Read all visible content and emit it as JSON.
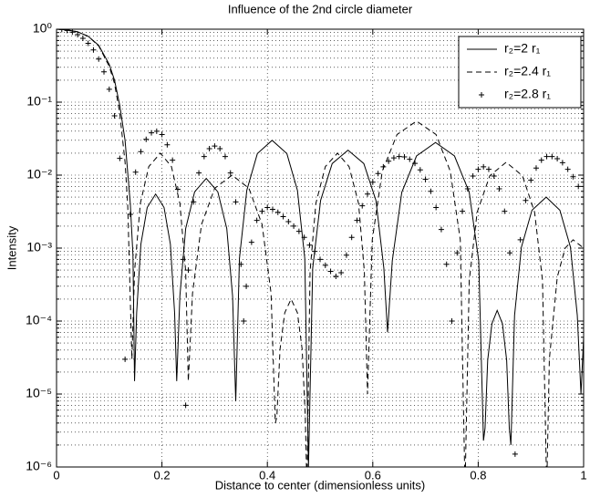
{
  "chart_data": {
    "type": "line",
    "title": "Influence of the 2nd circle diameter",
    "xlabel": "Distance to center (dimensionless units)",
    "ylabel": "Intensity",
    "xlim": [
      0,
      1
    ],
    "xticks": [
      0,
      0.2,
      0.4,
      0.6,
      0.8,
      1
    ],
    "ylim": [
      1e-06,
      1
    ],
    "yscale": "log",
    "yticks": [
      {
        "value": 1e-06,
        "label": "10⁻⁶"
      },
      {
        "value": 1e-05,
        "label": "10⁻⁵"
      },
      {
        "value": 0.0001,
        "label": "10⁻⁴"
      },
      {
        "value": 0.001,
        "label": "10⁻³"
      },
      {
        "value": 0.01,
        "label": "10⁻²"
      },
      {
        "value": 0.1,
        "label": "10⁻¹"
      },
      {
        "value": 1,
        "label": "10⁰"
      }
    ],
    "grid": true,
    "minor_grid": true,
    "legend": "upper right",
    "series": [
      {
        "name": "r₂=2 r₁",
        "color": "#000000",
        "line_style": "solid",
        "x": [
          0,
          0.02,
          0.04,
          0.06,
          0.08,
          0.1,
          0.11,
          0.12,
          0.13,
          0.14,
          0.145,
          0.148,
          0.152,
          0.16,
          0.172,
          0.188,
          0.204,
          0.216,
          0.224,
          0.228,
          0.234,
          0.245,
          0.262,
          0.284,
          0.306,
          0.323,
          0.334,
          0.34,
          0.347,
          0.361,
          0.381,
          0.409,
          0.437,
          0.457,
          0.471,
          0.478,
          0.486,
          0.501,
          0.523,
          0.553,
          0.583,
          0.606,
          0.621,
          0.628,
          0.637,
          0.655,
          0.683,
          0.719,
          0.755,
          0.783,
          0.801,
          0.81,
          0.813,
          0.818,
          0.826,
          0.836,
          0.846,
          0.854,
          0.859,
          0.862,
          0.869,
          0.882,
          0.902,
          0.929,
          0.955,
          0.975,
          0.988,
          0.995,
          1
        ],
        "values": [
          1,
          0.98,
          0.92,
          0.8,
          0.6,
          0.33,
          0.2,
          0.09,
          0.03,
          0.004,
          0.0008,
          1.5e-05,
          0.00013,
          0.00113,
          0.0036,
          0.0055,
          0.0036,
          0.00113,
          0.00013,
          1.5e-05,
          0.00022,
          0.00185,
          0.0059,
          0.009,
          0.0059,
          0.00185,
          0.00022,
          8e-06,
          0.00072,
          0.0062,
          0.0197,
          0.03,
          0.0197,
          0.0062,
          0.00072,
          1e-06,
          0.00053,
          0.0045,
          0.0144,
          0.022,
          0.0144,
          0.0045,
          0.00053,
          7e-05,
          0.00067,
          0.0058,
          0.0183,
          0.028,
          0.0183,
          0.0058,
          0.00067,
          2.3e-06,
          3.4e-06,
          2.9e-05,
          9.2e-05,
          0.00014,
          9.2e-05,
          2.9e-05,
          3.4e-06,
          2e-06,
          0.00012,
          0.00103,
          0.0033,
          0.005,
          0.0033,
          0.00103,
          0.00012,
          1e-05,
          6e-05
        ]
      },
      {
        "name": "r₂=2.4 r₁",
        "color": "#000000",
        "line_style": "dashed",
        "x": [
          0,
          0.02,
          0.04,
          0.06,
          0.08,
          0.1,
          0.11,
          0.12,
          0.13,
          0.135,
          0.143,
          0.148,
          0.159,
          0.175,
          0.197,
          0.218,
          0.234,
          0.245,
          0.25,
          0.258,
          0.275,
          0.3,
          0.333,
          0.365,
          0.39,
          0.407,
          0.415,
          0.418,
          0.424,
          0.433,
          0.445,
          0.457,
          0.466,
          0.472,
          0.475,
          0.481,
          0.492,
          0.51,
          0.533,
          0.555,
          0.573,
          0.584,
          0.59,
          0.599,
          0.618,
          0.646,
          0.683,
          0.72,
          0.747,
          0.766,
          0.775,
          0.783,
          0.798,
          0.822,
          0.853,
          0.884,
          0.907,
          0.922,
          0.93,
          0.935,
          0.95,
          0.965,
          0.98,
          1
        ],
        "values": [
          1,
          0.98,
          0.92,
          0.8,
          0.59,
          0.31,
          0.18,
          0.07,
          0.015,
          0.004,
          3e-05,
          0.00048,
          0.0041,
          0.0131,
          0.02,
          0.0131,
          0.0041,
          0.00048,
          1.5e-05,
          0.00024,
          0.0021,
          0.0066,
          0.01,
          0.0066,
          0.0021,
          0.00024,
          4e-06,
          4.8e-06,
          4.1e-05,
          0.00013,
          0.0002,
          0.00013,
          4.1e-05,
          4.8e-06,
          5e-07,
          0.00048,
          0.0041,
          0.0131,
          0.02,
          0.0131,
          0.0041,
          0.00048,
          1e-05,
          0.0013,
          0.0113,
          0.036,
          0.055,
          0.036,
          0.0113,
          0.0013,
          5e-07,
          0.00036,
          0.0031,
          0.0098,
          0.015,
          0.0098,
          0.0031,
          0.00036,
          5e-07,
          3e-05,
          0.0004,
          0.001,
          0.0013,
          0.001
        ]
      },
      {
        "name": "r₂=2.8 r₁",
        "color": "#000000",
        "line_style": "none",
        "marker": "+",
        "x": [
          0,
          0.01,
          0.02,
          0.03,
          0.04,
          0.05,
          0.06,
          0.07,
          0.08,
          0.09,
          0.1,
          0.11,
          0.12,
          0.13,
          0.14,
          0.15,
          0.16,
          0.17,
          0.18,
          0.19,
          0.2,
          0.21,
          0.22,
          0.23,
          0.24,
          0.245,
          0.25,
          0.26,
          0.27,
          0.28,
          0.29,
          0.3,
          0.31,
          0.32,
          0.33,
          0.34,
          0.35,
          0.355,
          0.36,
          0.37,
          0.38,
          0.39,
          0.4,
          0.41,
          0.42,
          0.43,
          0.44,
          0.45,
          0.46,
          0.47,
          0.48,
          0.49,
          0.5,
          0.51,
          0.52,
          0.53,
          0.54,
          0.55,
          0.56,
          0.57,
          0.58,
          0.59,
          0.6,
          0.61,
          0.62,
          0.63,
          0.64,
          0.65,
          0.66,
          0.67,
          0.68,
          0.69,
          0.7,
          0.71,
          0.72,
          0.73,
          0.74,
          0.75,
          0.76,
          0.77,
          0.78,
          0.79,
          0.8,
          0.81,
          0.82,
          0.83,
          0.84,
          0.85,
          0.86,
          0.87,
          0.88,
          0.89,
          0.9,
          0.91,
          0.92,
          0.93,
          0.94,
          0.95,
          0.96,
          0.97,
          0.98,
          0.99,
          1
        ],
        "values": [
          1,
          0.99,
          0.96,
          0.91,
          0.84,
          0.75,
          0.64,
          0.52,
          0.39,
          0.26,
          0.15,
          0.065,
          0.017,
          3e-05,
          0.0029,
          0.011,
          0.021,
          0.031,
          0.038,
          0.04,
          0.036,
          0.026,
          0.016,
          0.0064,
          0.0007,
          7e-06,
          0.0005,
          0.0043,
          0.0107,
          0.018,
          0.023,
          0.025,
          0.023,
          0.018,
          0.0107,
          0.0043,
          0.0006,
          0.0001,
          0.0003,
          0.0012,
          0.0024,
          0.0032,
          0.0036,
          0.0034,
          0.0031,
          0.0027,
          0.0023,
          0.002,
          0.0017,
          0.0014,
          0.0011,
          0.0009,
          0.0007,
          0.00058,
          0.00048,
          0.00041,
          0.00046,
          0.0008,
          0.0014,
          0.0024,
          0.0038,
          0.0055,
          0.008,
          0.0105,
          0.013,
          0.0155,
          0.0172,
          0.018,
          0.0178,
          0.0165,
          0.0145,
          0.0118,
          0.0088,
          0.006,
          0.0036,
          0.0018,
          0.0006,
          0.0001,
          0.00086,
          0.0032,
          0.0065,
          0.0097,
          0.012,
          0.013,
          0.012,
          0.0097,
          0.0065,
          0.0032,
          0.00086,
          1.5e-06,
          0.0013,
          0.0045,
          0.0085,
          0.0125,
          0.016,
          0.018,
          0.018,
          0.0168,
          0.0148,
          0.012,
          0.0095,
          0.007,
          0.005
        ]
      }
    ]
  }
}
